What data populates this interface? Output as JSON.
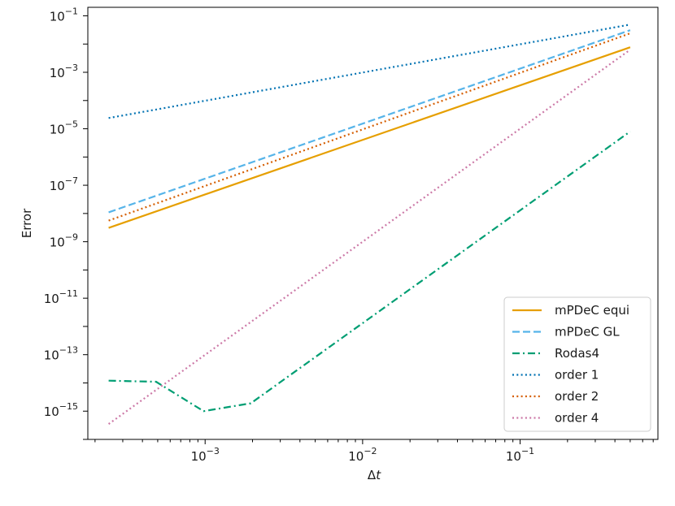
{
  "chart_data": {
    "type": "line",
    "xscale": "log",
    "yscale": "log",
    "xlabel_base": "Δ",
    "xlabel_var": "t",
    "ylabel": "Error",
    "xlim": [
      0.00018,
      0.75
    ],
    "ylim": [
      1e-16,
      0.2
    ],
    "x_ticks": [
      {
        "value": 0.001,
        "base": "10",
        "exp": "−3"
      },
      {
        "value": 0.01,
        "base": "10",
        "exp": "−2"
      },
      {
        "value": 0.1,
        "base": "10",
        "exp": "−1"
      }
    ],
    "y_ticks": [
      {
        "value": 1e-15,
        "base": "10",
        "exp": "−15"
      },
      {
        "value": 1e-13,
        "base": "10",
        "exp": "−13"
      },
      {
        "value": 1e-11,
        "base": "10",
        "exp": "−11"
      },
      {
        "value": 1e-09,
        "base": "10",
        "exp": "−9"
      },
      {
        "value": 1e-07,
        "base": "10",
        "exp": "−7"
      },
      {
        "value": 1e-05,
        "base": "10",
        "exp": "−5"
      },
      {
        "value": 0.001,
        "base": "10",
        "exp": "−3"
      },
      {
        "value": 0.1,
        "base": "10",
        "exp": "−1"
      }
    ],
    "legend_position": "lower-right",
    "series": [
      {
        "name": "mPDeC equi",
        "color": "#E69F00",
        "dash": "solid",
        "x": [
          0.000244,
          0.5
        ],
        "y": [
          3.1e-09,
          0.0077
        ]
      },
      {
        "name": "mPDeC GL",
        "color": "#56B4E9",
        "dash": "dashed",
        "x": [
          0.000244,
          0.5
        ],
        "y": [
          1.1e-08,
          0.031
        ]
      },
      {
        "name": "Rodas4",
        "color": "#009E73",
        "dash": "dashdot",
        "x": [
          0.000244,
          0.000488,
          0.000977,
          0.00195,
          0.5
        ],
        "y": [
          1.2e-14,
          1.1e-14,
          1e-15,
          1.9e-15,
          8e-06
        ]
      },
      {
        "name": "order 1",
        "color": "#0072B2",
        "dash": "dotted",
        "x": [
          0.000244,
          0.5
        ],
        "y": [
          2.4e-05,
          0.049
        ]
      },
      {
        "name": "order 2",
        "color": "#D55E00",
        "dash": "dotted",
        "x": [
          0.000244,
          0.5
        ],
        "y": [
          5.6e-09,
          0.024
        ]
      },
      {
        "name": "order 4",
        "color": "#CC79A7",
        "dash": "dotted",
        "x": [
          0.000244,
          0.5
        ],
        "y": [
          3.5e-16,
          0.0063
        ]
      }
    ]
  }
}
